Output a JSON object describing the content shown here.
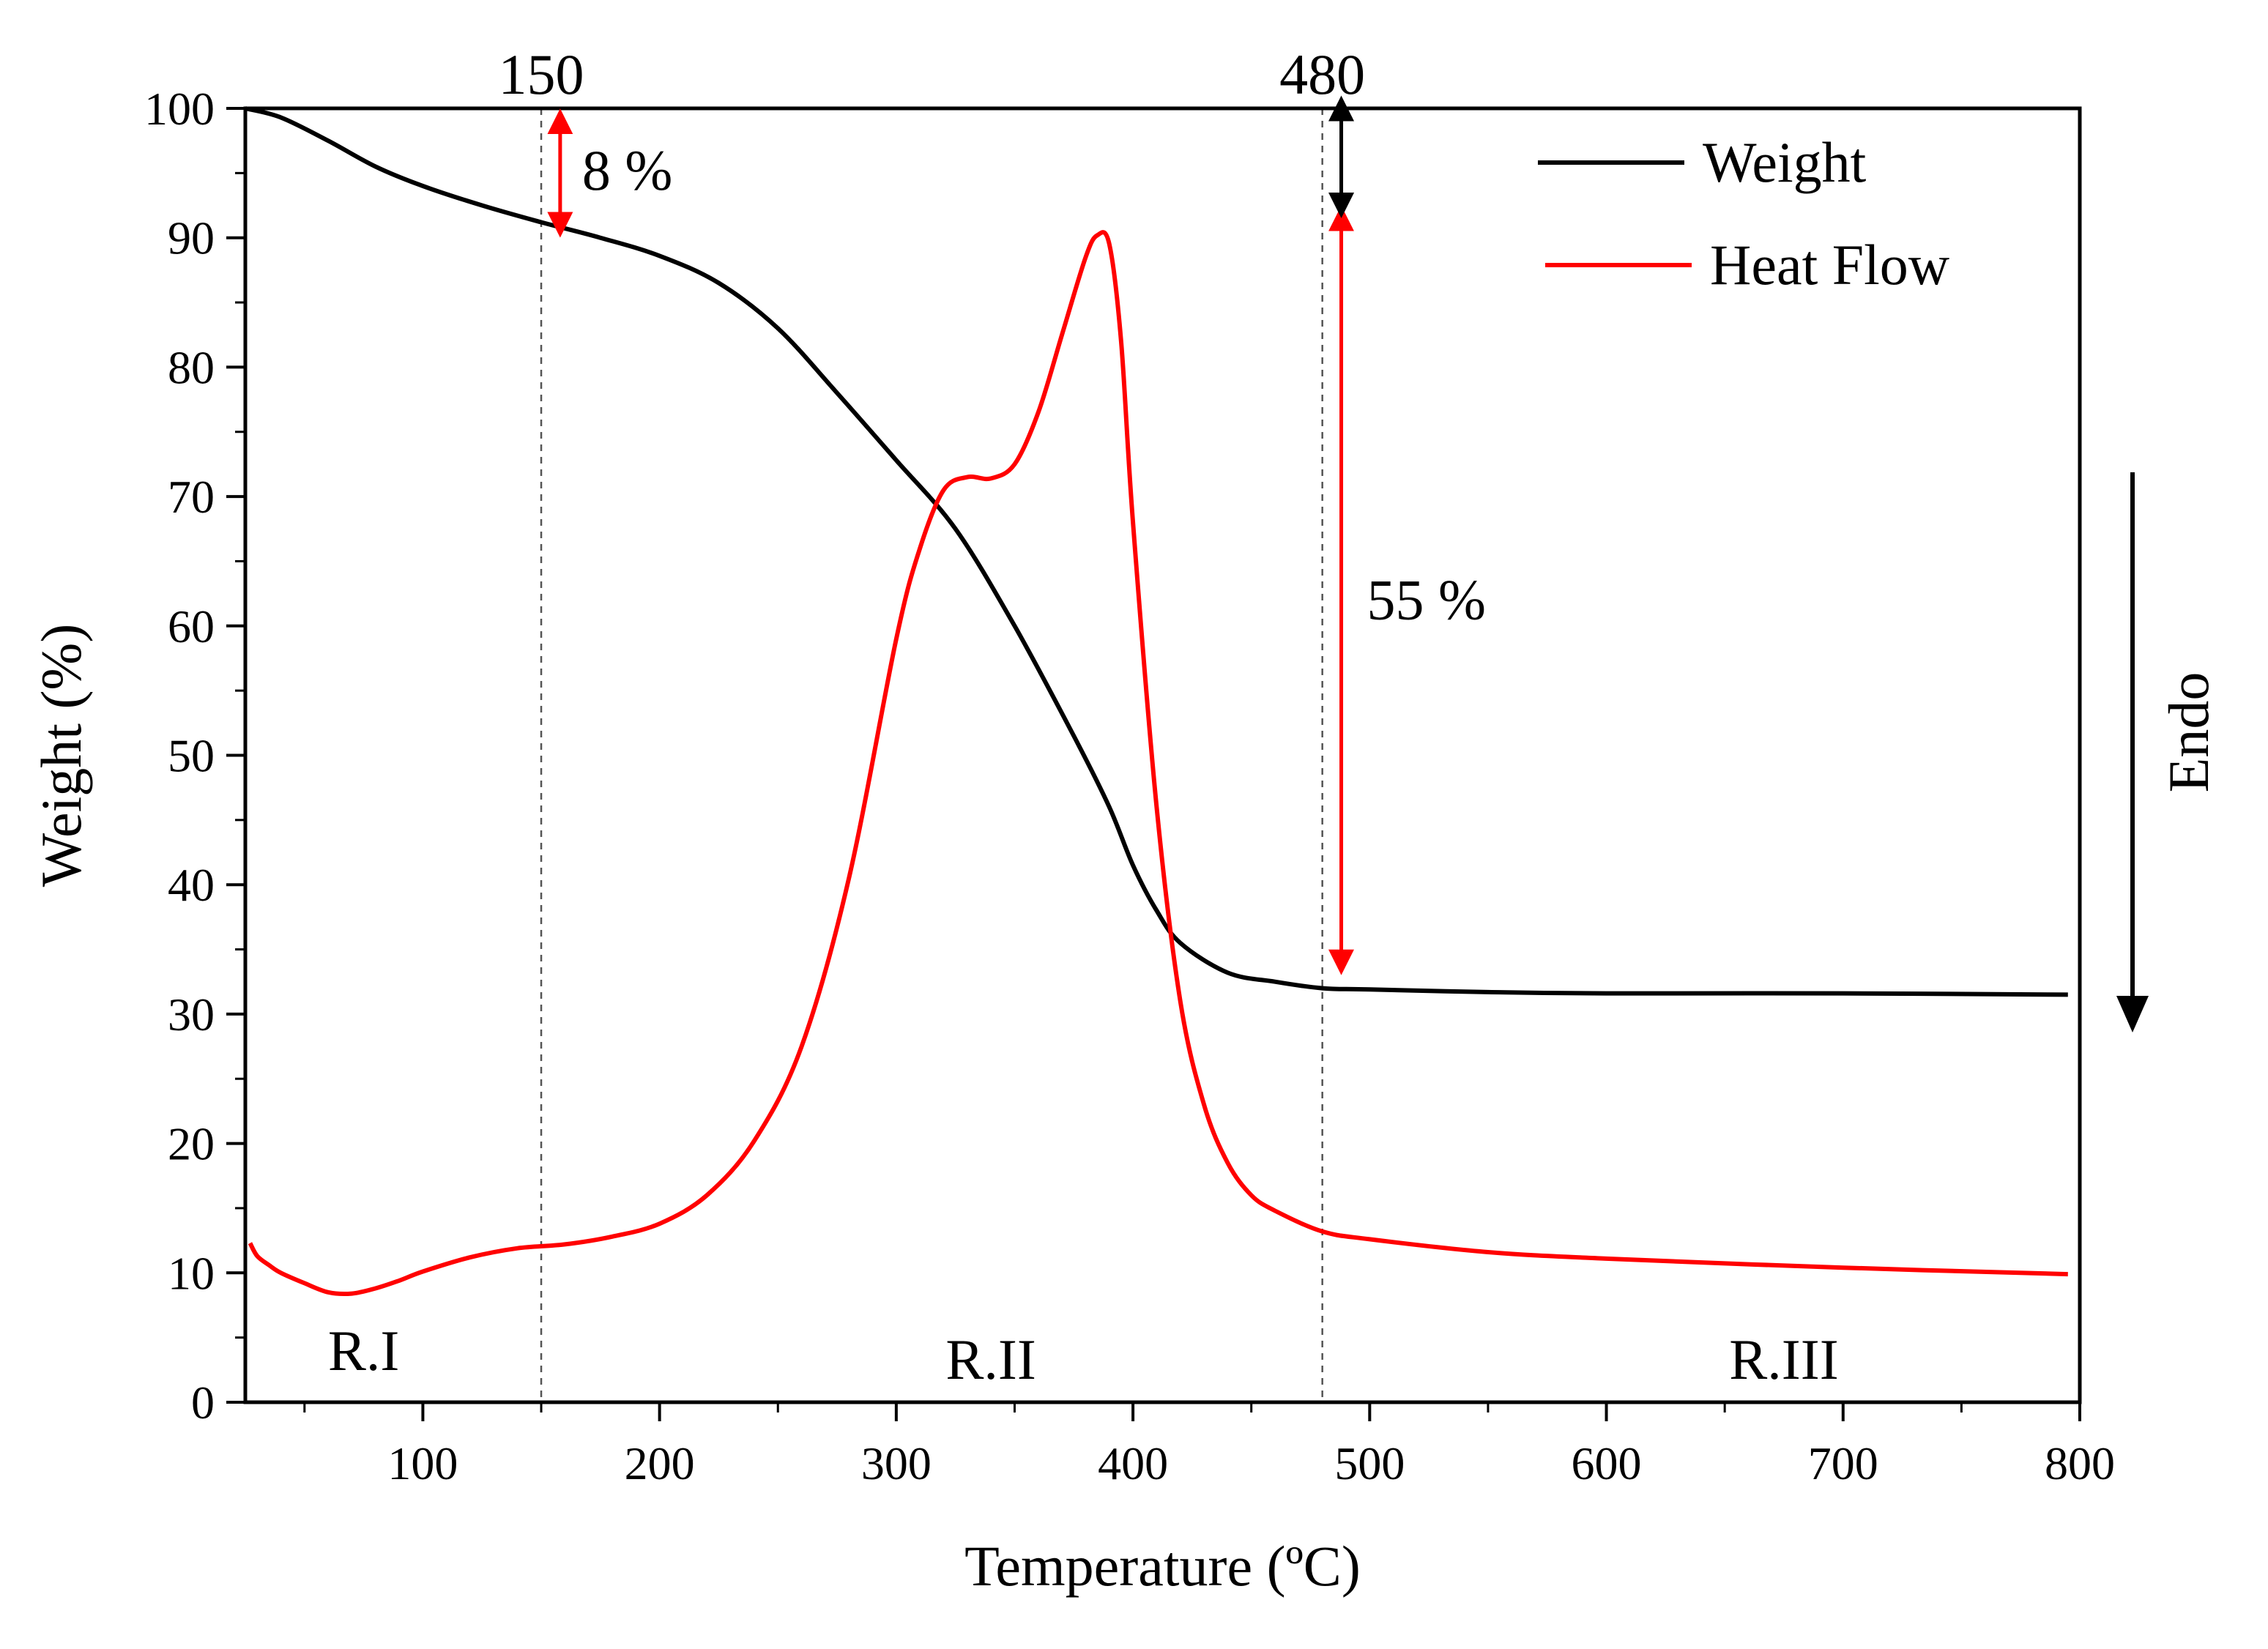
{
  "chart_data": {
    "type": "line",
    "xlabel": "Temperature (ºC)",
    "ylabel": "Weight (%)",
    "xlim": [
      25,
      800
    ],
    "ylim": [
      0,
      100
    ],
    "x_ticks": [
      100,
      200,
      300,
      400,
      500,
      600,
      700,
      800
    ],
    "y_ticks": [
      0,
      10,
      20,
      30,
      40,
      50,
      60,
      70,
      80,
      90,
      100
    ],
    "legend_position": "top-right",
    "legend": [
      {
        "label": "Weight",
        "color": "#000000"
      },
      {
        "label": "Heat Flow",
        "color": "#ff0000"
      }
    ],
    "series": [
      {
        "name": "Weight",
        "color": "#000000",
        "x": [
          25,
          40,
          60,
          80,
          100,
          125,
          150,
          175,
          200,
          225,
          250,
          275,
          300,
          325,
          350,
          375,
          390,
          400,
          410,
          420,
          440,
          460,
          480,
          500,
          550,
          600,
          700,
          795
        ],
        "y": [
          100,
          99.3,
          97.5,
          95.5,
          94,
          92.5,
          91.2,
          90,
          88.6,
          86.5,
          83,
          78,
          72.8,
          67.5,
          60,
          51.5,
          46,
          41.5,
          38,
          35.5,
          33.2,
          32.5,
          32,
          31.9,
          31.7,
          31.6,
          31.6,
          31.5
        ]
      },
      {
        "name": "Heat Flow",
        "color": "#ff0000",
        "x": [
          27,
          30,
          35,
          40,
          50,
          60,
          70,
          80,
          90,
          100,
          120,
          140,
          160,
          180,
          200,
          220,
          240,
          260,
          280,
          300,
          310,
          320,
          330,
          340,
          350,
          360,
          370,
          380,
          385,
          390,
          395,
          400,
          410,
          420,
          430,
          440,
          450,
          460,
          480,
          500,
          550,
          600,
          700,
          795
        ],
        "y": [
          12.3,
          11.3,
          10.6,
          10,
          9.2,
          8.5,
          8.4,
          8.8,
          9.4,
          10.1,
          11.2,
          11.9,
          12.2,
          12.8,
          13.8,
          16,
          20.2,
          27.5,
          40.5,
          59,
          66,
          70.5,
          71.5,
          71.4,
          72.5,
          76.5,
          82.5,
          88.5,
          90.2,
          89.5,
          82,
          68,
          46,
          31,
          23,
          18.5,
          16,
          14.8,
          13.2,
          12.6,
          11.6,
          11.1,
          10.4,
          9.9
        ]
      }
    ],
    "reference_lines": [
      {
        "x": 150,
        "label": "150"
      },
      {
        "x": 480,
        "label": "480"
      }
    ],
    "annotations": [
      {
        "text": "8 %",
        "x": 158,
        "y_from": 99,
        "y_to": 91,
        "color": "#ff0000"
      },
      {
        "text": "55 %",
        "x": 488,
        "y_from": 91.5,
        "y_to": 34,
        "color": "#ff0000"
      },
      {
        "text": "",
        "x": 488,
        "y_from": 100,
        "y_to": 92.5,
        "color": "#000000"
      },
      {
        "text": "Endo",
        "direction": "down"
      }
    ],
    "regions": [
      {
        "label": "R.I",
        "x": 75
      },
      {
        "label": "R.II",
        "x": 340
      },
      {
        "label": "R.III",
        "x": 675
      }
    ]
  }
}
